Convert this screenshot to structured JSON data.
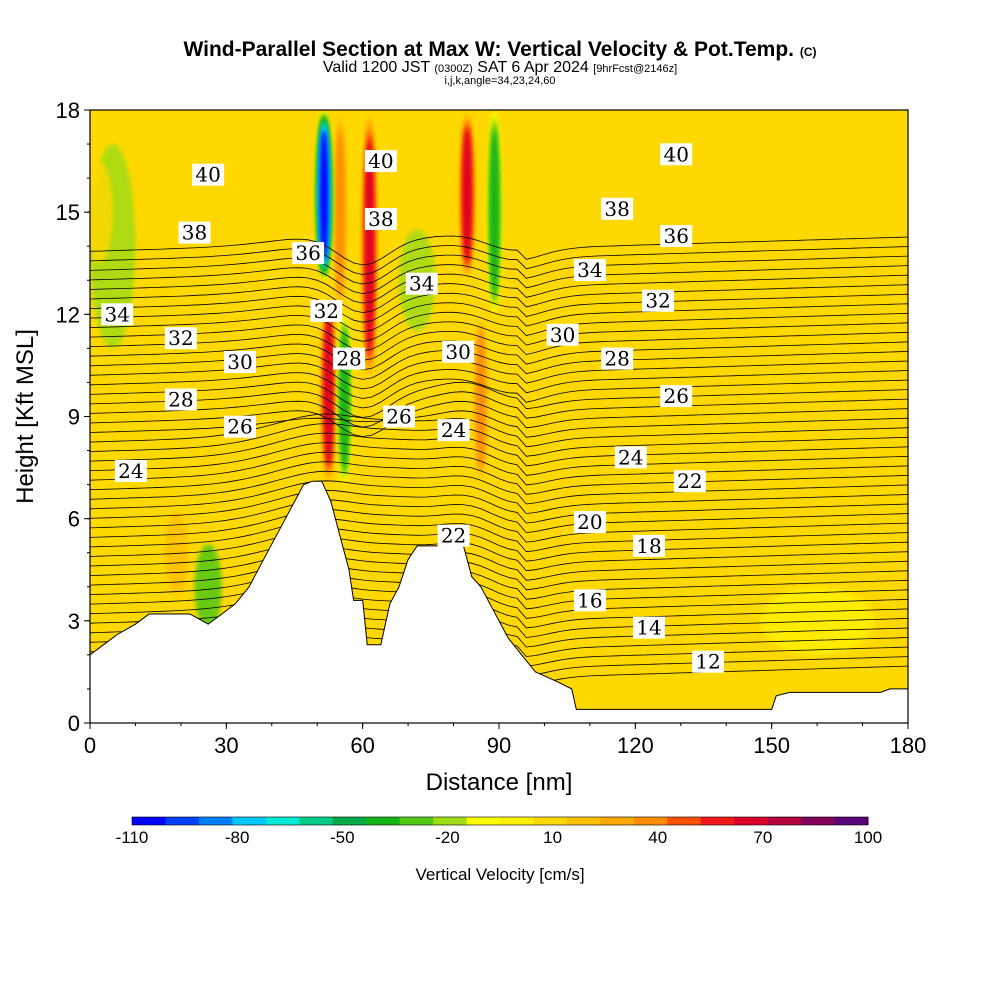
{
  "header": {
    "title_main": "Wind-Parallel Section at Max W: Vertical Velocity & Pot.Temp.",
    "title_suffix": "(C)",
    "valid_a": "Valid 1200 JST",
    "valid_b": "(0300Z)",
    "valid_c": "SAT 6 Apr 2024",
    "valid_d": "[9hrFcst@2146z]",
    "indices": "i,j,k,angle=34,23,24,60"
  },
  "chart_data": {
    "type": "heatmap",
    "xlabel": "Distance [nm]",
    "ylabel": "Height [Kft MSL]",
    "xlim": [
      0,
      180
    ],
    "ylim": [
      0,
      18
    ],
    "xticks": [
      0,
      30,
      60,
      90,
      120,
      150,
      180
    ],
    "yticks": [
      0,
      3,
      6,
      9,
      12,
      15,
      18
    ],
    "colorbar": {
      "label": "Vertical Velocity [cm/s]",
      "tick_labels": [
        "-110",
        "-80",
        "-50",
        "-20",
        "10",
        "40",
        "70",
        "100"
      ],
      "tick_values": [
        -110,
        -80,
        -50,
        -20,
        10,
        40,
        70,
        100
      ],
      "levels": [
        -110,
        -100,
        -90,
        -80,
        -70,
        -60,
        -50,
        -40,
        -30,
        -20,
        -10,
        0,
        10,
        20,
        30,
        40,
        50,
        60,
        70,
        80,
        90,
        100
      ],
      "colors": [
        "#0000ff",
        "#0040ff",
        "#0080ff",
        "#00c8ff",
        "#00e8d8",
        "#00cc88",
        "#00aa44",
        "#14b414",
        "#50c814",
        "#a0dc14",
        "#ffff00",
        "#fff000",
        "#ffd800",
        "#ffc000",
        "#ffa800",
        "#ff8c00",
        "#ff5000",
        "#f01818",
        "#dc0028",
        "#b4003c",
        "#82005a",
        "#5a0078"
      ]
    },
    "terrain_kft": [
      [
        0,
        2.0
      ],
      [
        3,
        2.3
      ],
      [
        6,
        2.6
      ],
      [
        10,
        2.9
      ],
      [
        13,
        3.2
      ],
      [
        17,
        3.2
      ],
      [
        22,
        3.2
      ],
      [
        26,
        2.9
      ],
      [
        29,
        3.2
      ],
      [
        32,
        3.5
      ],
      [
        35,
        4.0
      ],
      [
        37,
        4.5
      ],
      [
        39,
        5.0
      ],
      [
        41,
        5.5
      ],
      [
        43,
        6.0
      ],
      [
        45,
        6.5
      ],
      [
        47,
        7.0
      ],
      [
        49,
        7.1
      ],
      [
        51,
        7.1
      ],
      [
        53,
        6.5
      ],
      [
        55,
        5.5
      ],
      [
        57,
        4.5
      ],
      [
        58,
        3.6
      ],
      [
        60,
        3.6
      ],
      [
        61,
        2.3
      ],
      [
        64,
        2.3
      ],
      [
        66,
        3.5
      ],
      [
        68,
        4.0
      ],
      [
        70,
        4.8
      ],
      [
        72,
        5.2
      ],
      [
        80,
        5.2
      ],
      [
        82,
        5.3
      ],
      [
        84,
        4.3
      ],
      [
        86,
        4.0
      ],
      [
        88,
        3.5
      ],
      [
        90,
        3.0
      ],
      [
        92,
        2.5
      ],
      [
        95,
        2.0
      ],
      [
        98,
        1.5
      ],
      [
        103,
        1.2
      ],
      [
        106,
        1.0
      ],
      [
        107,
        0.4
      ],
      [
        150,
        0.4
      ],
      [
        151,
        0.8
      ],
      [
        154,
        0.9
      ],
      [
        174,
        0.9
      ],
      [
        176,
        1.0
      ],
      [
        181,
        1.0
      ]
    ],
    "updrafts": [
      {
        "x": 52.5,
        "y_from": 7,
        "y_to": 12.5,
        "width_nm": 3.0,
        "value": 70
      },
      {
        "x": 55.0,
        "y_from": 12,
        "y_to": 18,
        "width_nm": 2.5,
        "value": 40
      },
      {
        "x": 61.5,
        "y_from": 10,
        "y_to": 18,
        "width_nm": 3.0,
        "value": 70
      },
      {
        "x": 83.0,
        "y_from": 13,
        "y_to": 18,
        "width_nm": 3.0,
        "value": 70
      },
      {
        "x": 86.0,
        "y_from": 7,
        "y_to": 12,
        "width_nm": 2.5,
        "value": 40
      }
    ],
    "downdrafts": [
      {
        "x": 51.5,
        "y_from": 13,
        "y_to": 18,
        "width_nm": 3.0,
        "value": -110
      },
      {
        "x": 56.0,
        "y_from": 7,
        "y_to": 12,
        "width_nm": 2.5,
        "value": -40
      },
      {
        "x": 89.0,
        "y_from": 12,
        "y_to": 18,
        "width_nm": 2.5,
        "value": -40
      }
    ],
    "isentrope_labels": [
      {
        "text": "40",
        "x": 26,
        "y": 16.1
      },
      {
        "text": "38",
        "x": 23,
        "y": 14.4
      },
      {
        "text": "36",
        "x": 48,
        "y": 13.8
      },
      {
        "text": "34",
        "x": 6,
        "y": 12.0
      },
      {
        "text": "32",
        "x": 20,
        "y": 11.3
      },
      {
        "text": "32",
        "x": 52,
        "y": 12.1
      },
      {
        "text": "30",
        "x": 33,
        "y": 10.6
      },
      {
        "text": "28",
        "x": 20,
        "y": 9.5
      },
      {
        "text": "28",
        "x": 57,
        "y": 10.7
      },
      {
        "text": "26",
        "x": 33,
        "y": 8.7
      },
      {
        "text": "24",
        "x": 9,
        "y": 7.4
      },
      {
        "text": "40",
        "x": 64,
        "y": 16.5
      },
      {
        "text": "38",
        "x": 64,
        "y": 14.8
      },
      {
        "text": "34",
        "x": 73,
        "y": 12.9
      },
      {
        "text": "26",
        "x": 68,
        "y": 9.0
      },
      {
        "text": "30",
        "x": 81,
        "y": 10.9
      },
      {
        "text": "24",
        "x": 80,
        "y": 8.6
      },
      {
        "text": "22",
        "x": 80,
        "y": 5.5
      },
      {
        "text": "40",
        "x": 129,
        "y": 16.7
      },
      {
        "text": "38",
        "x": 116,
        "y": 15.1
      },
      {
        "text": "36",
        "x": 129,
        "y": 14.3
      },
      {
        "text": "34",
        "x": 110,
        "y": 13.3
      },
      {
        "text": "32",
        "x": 125,
        "y": 12.4
      },
      {
        "text": "30",
        "x": 104,
        "y": 11.4
      },
      {
        "text": "28",
        "x": 116,
        "y": 10.7
      },
      {
        "text": "26",
        "x": 129,
        "y": 9.6
      },
      {
        "text": "24",
        "x": 119,
        "y": 7.8
      },
      {
        "text": "22",
        "x": 132,
        "y": 7.1
      },
      {
        "text": "20",
        "x": 110,
        "y": 5.9
      },
      {
        "text": "18",
        "x": 123,
        "y": 5.2
      },
      {
        "text": "16",
        "x": 110,
        "y": 3.6
      },
      {
        "text": "14",
        "x": 123,
        "y": 2.8
      },
      {
        "text": "12",
        "x": 136,
        "y": 1.8
      }
    ],
    "legend": "colorbar-bottom",
    "grid": false
  }
}
